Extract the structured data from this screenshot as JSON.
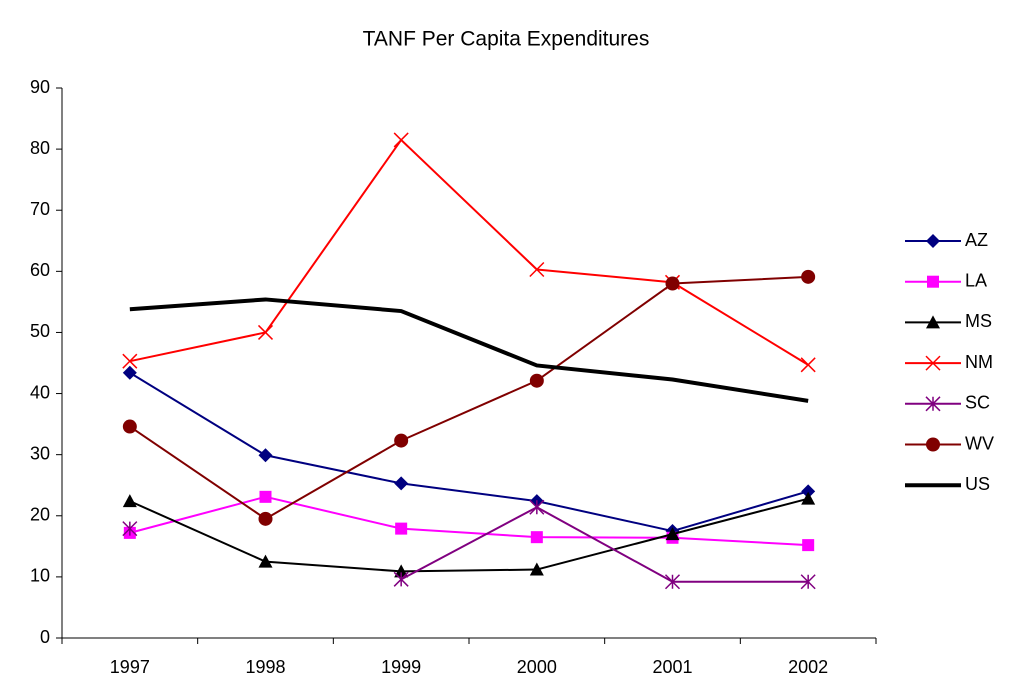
{
  "chart_data": {
    "type": "line",
    "title": "TANF Per Capita Expenditures",
    "categories": [
      "1997",
      "1998",
      "1999",
      "2000",
      "2001",
      "2002"
    ],
    "series": [
      {
        "name": "AZ",
        "color": "#000080",
        "marker": "diamond",
        "values": [
          43.4,
          29.9,
          25.3,
          22.4,
          17.5,
          24.0
        ]
      },
      {
        "name": "LA",
        "color": "#ff00ff",
        "marker": "square",
        "values": [
          17.2,
          23.1,
          17.9,
          16.5,
          16.4,
          15.2
        ]
      },
      {
        "name": "MS",
        "color": "#000000",
        "marker": "triangle",
        "values": [
          22.4,
          12.5,
          10.9,
          11.2,
          17.0,
          22.8
        ]
      },
      {
        "name": "NM",
        "color": "#ff0000",
        "marker": "x",
        "values": [
          45.3,
          50.0,
          81.5,
          60.3,
          58.2,
          44.7
        ]
      },
      {
        "name": "SC",
        "color": "#800080",
        "marker": "asterisk",
        "values": [
          17.9,
          null,
          9.6,
          21.4,
          9.2,
          9.2
        ]
      },
      {
        "name": "WV",
        "color": "#800000",
        "marker": "circle",
        "values": [
          34.6,
          19.5,
          32.3,
          42.1,
          58.0,
          59.1
        ]
      },
      {
        "name": "US",
        "color": "#000000",
        "marker": "none",
        "line_width": 4,
        "values": [
          53.8,
          55.4,
          53.5,
          44.6,
          42.3,
          38.8
        ]
      }
    ],
    "ylim": [
      0,
      90
    ],
    "yticks": [
      0,
      10,
      20,
      30,
      40,
      50,
      60,
      70,
      80,
      90
    ],
    "grid": false,
    "legend": "right"
  }
}
